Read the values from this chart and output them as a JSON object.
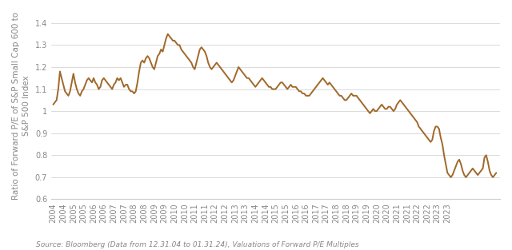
{
  "ylabel": "Ratio of Forward P/E of S&P Small Cap 600 to\nS&P 500 Index",
  "source_text": "Source: Bloomberg (Data from 12.31.04 to 01.31.24), Valuations of Forward P/E Multiples",
  "line_color": "#A0682A",
  "line_width": 1.4,
  "background_color": "#ffffff",
  "ylim": [
    0.6,
    1.45
  ],
  "yticks": [
    0.6,
    0.7,
    0.8,
    0.9,
    1.0,
    1.1,
    1.2,
    1.3,
    1.4
  ],
  "grid_color": "#cccccc",
  "tick_fontsize": 7,
  "ylabel_fontsize": 7.5,
  "source_fontsize": 6.5,
  "x_start_year": 2004,
  "x_end_year": 2024,
  "series": [
    1.03,
    1.04,
    1.05,
    1.1,
    1.18,
    1.15,
    1.12,
    1.09,
    1.08,
    1.07,
    1.09,
    1.13,
    1.17,
    1.13,
    1.1,
    1.08,
    1.07,
    1.09,
    1.1,
    1.12,
    1.14,
    1.15,
    1.14,
    1.13,
    1.15,
    1.13,
    1.12,
    1.1,
    1.11,
    1.14,
    1.15,
    1.14,
    1.13,
    1.12,
    1.11,
    1.1,
    1.12,
    1.13,
    1.15,
    1.14,
    1.15,
    1.13,
    1.11,
    1.12,
    1.12,
    1.1,
    1.09,
    1.09,
    1.08,
    1.09,
    1.13,
    1.18,
    1.22,
    1.23,
    1.22,
    1.24,
    1.25,
    1.24,
    1.22,
    1.2,
    1.19,
    1.22,
    1.25,
    1.26,
    1.28,
    1.27,
    1.3,
    1.33,
    1.35,
    1.34,
    1.33,
    1.32,
    1.32,
    1.31,
    1.3,
    1.3,
    1.28,
    1.27,
    1.26,
    1.25,
    1.24,
    1.23,
    1.22,
    1.2,
    1.19,
    1.22,
    1.25,
    1.28,
    1.29,
    1.28,
    1.27,
    1.25,
    1.22,
    1.2,
    1.19,
    1.2,
    1.21,
    1.22,
    1.21,
    1.2,
    1.19,
    1.18,
    1.17,
    1.16,
    1.15,
    1.14,
    1.13,
    1.14,
    1.16,
    1.18,
    1.2,
    1.19,
    1.18,
    1.17,
    1.16,
    1.15,
    1.15,
    1.14,
    1.13,
    1.12,
    1.11,
    1.12,
    1.13,
    1.14,
    1.15,
    1.14,
    1.13,
    1.12,
    1.11,
    1.11,
    1.1,
    1.1,
    1.1,
    1.11,
    1.12,
    1.13,
    1.13,
    1.12,
    1.11,
    1.1,
    1.11,
    1.12,
    1.11,
    1.11,
    1.11,
    1.1,
    1.09,
    1.09,
    1.08,
    1.08,
    1.07,
    1.07,
    1.07,
    1.08,
    1.09,
    1.1,
    1.11,
    1.12,
    1.13,
    1.14,
    1.15,
    1.14,
    1.13,
    1.12,
    1.13,
    1.12,
    1.11,
    1.1,
    1.09,
    1.08,
    1.07,
    1.07,
    1.06,
    1.05,
    1.05,
    1.06,
    1.07,
    1.08,
    1.07,
    1.07,
    1.07,
    1.06,
    1.05,
    1.04,
    1.03,
    1.02,
    1.01,
    1.0,
    0.99,
    1.0,
    1.01,
    1.0,
    1.0,
    1.01,
    1.02,
    1.03,
    1.02,
    1.01,
    1.01,
    1.02,
    1.02,
    1.01,
    1.0,
    1.01,
    1.03,
    1.04,
    1.05,
    1.04,
    1.03,
    1.02,
    1.01,
    1.0,
    0.99,
    0.98,
    0.97,
    0.96,
    0.95,
    0.93,
    0.92,
    0.91,
    0.9,
    0.89,
    0.88,
    0.87,
    0.86,
    0.87,
    0.91,
    0.93,
    0.93,
    0.92,
    0.88,
    0.85,
    0.8,
    0.76,
    0.72,
    0.71,
    0.7,
    0.71,
    0.73,
    0.75,
    0.77,
    0.78,
    0.76,
    0.73,
    0.71,
    0.7,
    0.71,
    0.72,
    0.73,
    0.74,
    0.73,
    0.72,
    0.71,
    0.72,
    0.73,
    0.74,
    0.79,
    0.8,
    0.77,
    0.73,
    0.71,
    0.7,
    0.71,
    0.72
  ]
}
